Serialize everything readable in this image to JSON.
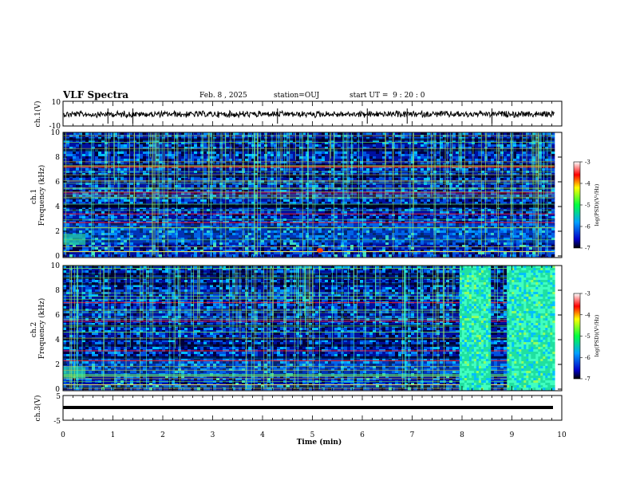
{
  "header": {
    "title": "VLF Spectra",
    "date": "Feb. 8 , 2025",
    "station": "station=OUJ",
    "start": "start UT =  9 : 20 : 0"
  },
  "chart_data": [
    {
      "type": "line",
      "name": "ch1-waveform",
      "ylabel": "ch.1(V)",
      "ylim": [
        -10,
        10
      ],
      "yticks": [
        "10",
        "-10"
      ],
      "xlim": [
        0,
        10
      ],
      "description_level": -0.5
    },
    {
      "type": "heatmap",
      "name": "ch1-spectrogram",
      "ylabel": "ch.1\nFrequency (kHz)",
      "ylim": [
        0,
        10
      ],
      "yticks": [
        "0",
        "2",
        "4",
        "6",
        "8",
        "10"
      ],
      "xlim": [
        0,
        9.85
      ],
      "colorbar": {
        "label": "log(PSD)(V²/Hz)",
        "range": [
          -7,
          -3
        ],
        "ticks": [
          "-3",
          "-4",
          "-5",
          "-6",
          "-7"
        ]
      },
      "bands_khz": [
        0.3,
        0.8,
        1.2,
        1.6,
        2.2,
        2.6,
        3.0,
        3.4,
        3.8,
        4.1,
        4.6,
        5.0,
        5.4,
        5.8,
        6.2,
        6.6,
        7.0,
        7.4,
        7.9,
        8.4,
        8.9,
        9.3,
        9.7
      ],
      "red_lines_khz": [
        7.2,
        5.1,
        3.4,
        2.7
      ]
    },
    {
      "type": "heatmap",
      "name": "ch2-spectrogram",
      "ylabel": "ch.2\nFrequency (kHz)",
      "ylim": [
        0,
        10
      ],
      "yticks": [
        "0",
        "2",
        "4",
        "6",
        "8",
        "10"
      ],
      "xlim": [
        0,
        9.85
      ],
      "colorbar": {
        "label": "log(PSD)(V²/Hz)",
        "range": [
          -7,
          -3
        ],
        "ticks": [
          "-3",
          "-4",
          "-5",
          "-6",
          "-7"
        ]
      },
      "bright_blocks_min": [
        [
          7.95,
          8.55
        ],
        [
          8.9,
          9.85
        ]
      ],
      "red_lines_khz": [
        7.0,
        5.5,
        3.1,
        2.3
      ]
    },
    {
      "type": "line",
      "name": "ch3-trace",
      "ylabel": "ch.3(V)",
      "ylim": [
        -5,
        5
      ],
      "yticks": [
        "5",
        "-5"
      ],
      "xlim": [
        0,
        10
      ],
      "level": -0.5
    }
  ],
  "xaxis": {
    "label": "Time (min)",
    "ticks": [
      "0",
      "1",
      "2",
      "3",
      "4",
      "5",
      "6",
      "7",
      "8",
      "9",
      "10"
    ]
  }
}
